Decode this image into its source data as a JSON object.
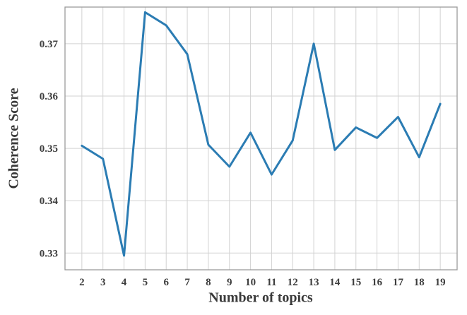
{
  "page": {
    "background": "#ffffff"
  },
  "chart_data": {
    "type": "line",
    "title": "",
    "xlabel": "Number of topics",
    "ylabel": "Coherence Score",
    "x": [
      2,
      3,
      4,
      5,
      6,
      7,
      8,
      9,
      10,
      11,
      12,
      13,
      14,
      15,
      16,
      17,
      18,
      19
    ],
    "series": [
      {
        "name": "coherence-score",
        "values": [
          0.3505,
          0.348,
          0.3295,
          0.376,
          0.3735,
          0.368,
          0.3507,
          0.3465,
          0.353,
          0.345,
          0.3515,
          0.37,
          0.3497,
          0.354,
          0.352,
          0.356,
          0.3483,
          0.3585
        ],
        "color": "#2b7cb3",
        "line_width": 3
      }
    ],
    "xticks": [
      2,
      3,
      4,
      5,
      6,
      7,
      8,
      9,
      10,
      11,
      12,
      13,
      14,
      15,
      16,
      17,
      18,
      19
    ],
    "xtick_labels": [
      "2",
      "3",
      "4",
      "5",
      "6",
      "7",
      "8",
      "9",
      "10",
      "11",
      "12",
      "13",
      "14",
      "15",
      "16",
      "17",
      "18",
      "19"
    ],
    "yticks": [
      0.33,
      0.34,
      0.35,
      0.36,
      0.37
    ],
    "ytick_labels": [
      "0.33",
      "0.34",
      "0.35",
      "0.36",
      "0.37"
    ],
    "xlim": [
      1.2,
      19.8
    ],
    "ylim": [
      0.3268,
      0.377
    ],
    "grid": true,
    "grid_color": "#d2d2d2",
    "spine_color": "#9b9b9b",
    "text_color": "#3d3d3d",
    "legend_position": "none"
  }
}
